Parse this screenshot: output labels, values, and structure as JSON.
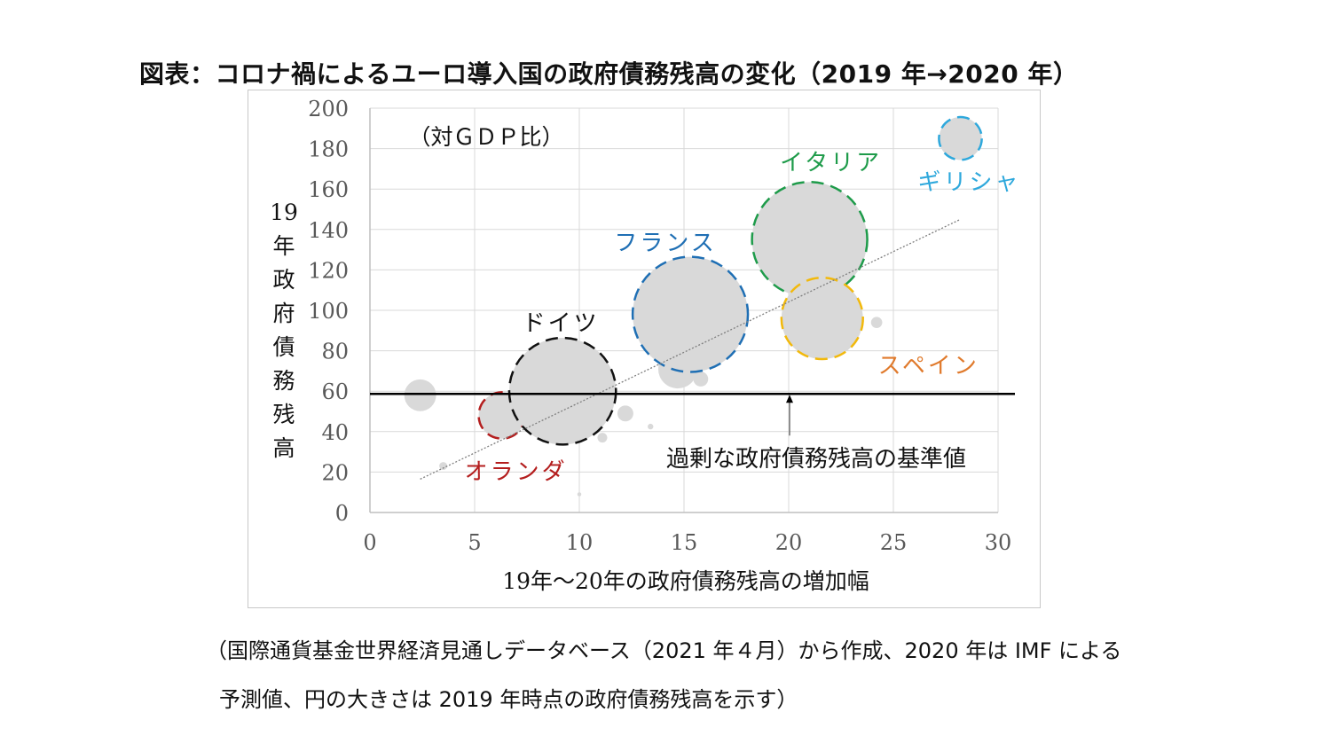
{
  "title": "図表：コロナ禍によるユーロ導入国の政府債務残高の変化（2019 年→2020 年）",
  "footnotes": [
    "（国際通貨基金世界経済見通しデータベース（2021 年４月）から作成、2020 年は IMF による",
    "予測値、円の大きさは 2019 年時点の政府債務残高を示す）"
  ],
  "chart_data": {
    "type": "bubble",
    "xlabel": "19年～20年の政府債務残高の増加幅",
    "ylabel": "19年政府債務残高",
    "unit_note": "（対ＧＤＰ比）",
    "xlim": [
      0,
      30
    ],
    "ylim": [
      0,
      200
    ],
    "xticks": [
      "0",
      "5",
      "10",
      "15",
      "20",
      "25",
      "30"
    ],
    "yticks": [
      "0",
      "20",
      "40",
      "60",
      "80",
      "100",
      "120",
      "140",
      "160",
      "180",
      "200"
    ],
    "grid": true,
    "reference_line": {
      "y": 60,
      "label": "過剰な政府債務残高の基準値"
    },
    "trendline": {
      "x": [
        2.4,
        28.2
      ],
      "y": [
        16.5,
        145
      ]
    },
    "bubble_fill": "#d9d9d9",
    "series": [
      {
        "name": "ギリシャ",
        "x": 28.2,
        "y": 185,
        "size": 0.58,
        "color": "#2ea8dc",
        "label_color": "#2ea8dc"
      },
      {
        "name": "イタリア",
        "x": 21.0,
        "y": 135,
        "size": 4.2,
        "color": "#1e9b4a",
        "label_color": "#1e9b4a"
      },
      {
        "name": "フランス",
        "x": 15.3,
        "y": 98,
        "size": 4.2,
        "color": "#1f6fb4",
        "label_color": "#1f6fb4"
      },
      {
        "name": "スペイン",
        "x": 21.6,
        "y": 96,
        "size": 2.1,
        "color": "#f2b90c",
        "label_color": "#e07a2c"
      },
      {
        "name": "ドイツ",
        "x": 9.2,
        "y": 60,
        "size": 3.6,
        "color": "#111111",
        "label_color": "#111111"
      },
      {
        "name": "オランダ",
        "x": 6.3,
        "y": 48,
        "size": 0.68,
        "color": "#b41e1e",
        "label_color": "#b41e1e"
      },
      {
        "x": 2.4,
        "y": 58,
        "size": 0.32
      },
      {
        "x": 14.7,
        "y": 71,
        "size": 0.48
      },
      {
        "x": 15.8,
        "y": 66,
        "size": 0.07
      },
      {
        "x": 12.2,
        "y": 49,
        "size": 0.08
      },
      {
        "x": 11.1,
        "y": 37,
        "size": 0.03
      },
      {
        "x": 13.4,
        "y": 42.5,
        "size": 0.01
      },
      {
        "x": 3.5,
        "y": 23,
        "size": 0.02
      },
      {
        "x": 10.0,
        "y": 9,
        "size": 0.005
      },
      {
        "x": 24.2,
        "y": 94,
        "size": 0.04
      }
    ]
  }
}
